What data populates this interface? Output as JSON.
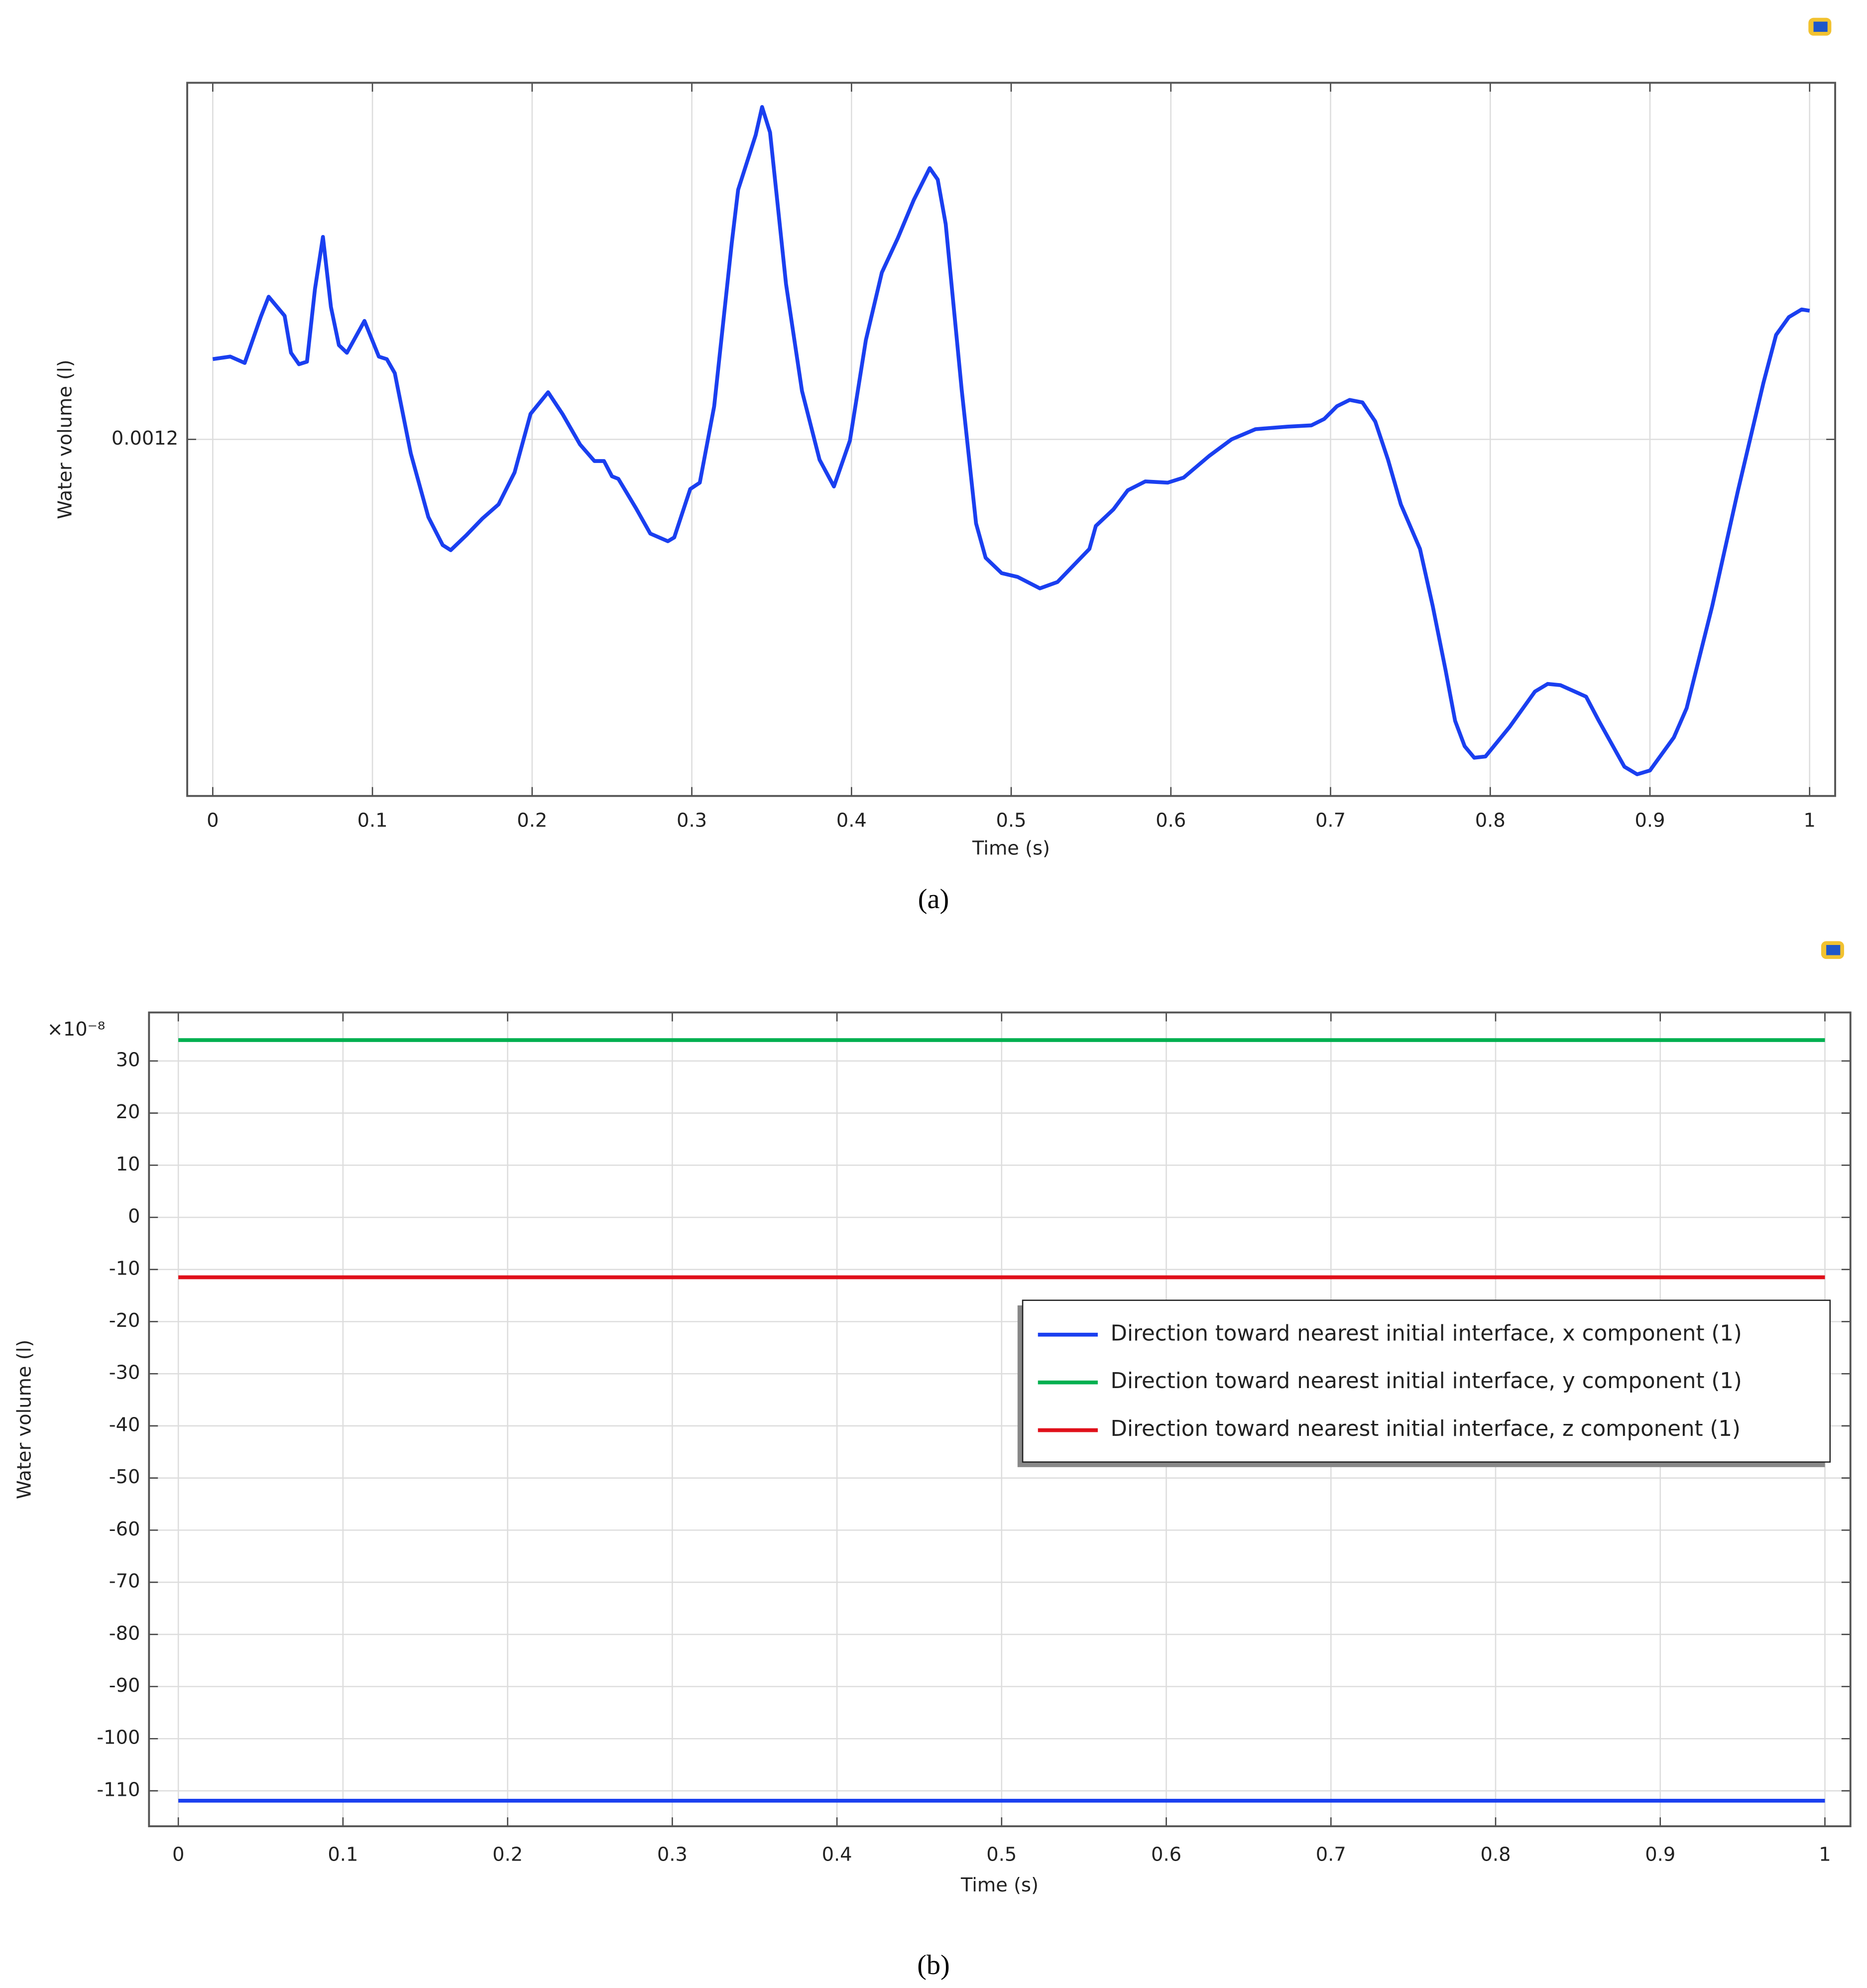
{
  "chart_data": [
    {
      "type": "line",
      "caption": "(a)",
      "x_label": "Time (s)",
      "y_label": "Water volume (l)",
      "color": "#1a3ff0",
      "grid": true,
      "x": [
        0,
        0.011,
        0.02,
        0.03,
        0.035,
        0.045,
        0.049,
        0.054,
        0.059,
        0.064,
        0.069,
        0.074,
        0.079,
        0.084,
        0.095,
        0.104,
        0.109,
        0.114,
        0.124,
        0.135,
        0.144,
        0.149,
        0.159,
        0.169,
        0.179,
        0.189,
        0.199,
        0.21,
        0.219,
        0.23,
        0.239,
        0.245,
        0.25,
        0.254,
        0.265,
        0.274,
        0.285,
        0.289,
        0.299,
        0.305,
        0.314,
        0.325,
        0.329,
        0.34,
        0.344,
        0.349,
        0.359,
        0.369,
        0.38,
        0.389,
        0.399,
        0.409,
        0.419,
        0.429,
        0.439,
        0.449,
        0.454,
        0.459,
        0.469,
        0.478,
        0.484,
        0.494,
        0.504,
        0.518,
        0.529,
        0.549,
        0.553,
        0.564,
        0.573,
        0.584,
        0.598,
        0.608,
        0.624,
        0.638,
        0.653,
        0.673,
        0.688,
        0.696,
        0.704,
        0.712,
        0.72,
        0.728,
        0.736,
        0.744,
        0.756,
        0.764,
        0.772,
        0.778,
        0.784,
        0.79,
        0.797,
        0.812,
        0.828,
        0.836,
        0.844,
        0.86,
        0.868,
        0.884,
        0.892,
        0.9,
        0.915,
        0.923,
        0.939,
        0.955,
        0.971,
        0.979,
        0.987,
        0.995,
        1
      ],
      "values": [
        0.0012063,
        0.0012065,
        0.001206,
        0.0012096,
        0.0012112,
        0.0012097,
        0.0012068,
        0.0012059,
        0.0012061,
        0.0012118,
        0.0012159,
        0.0012104,
        0.0012074,
        0.0012068,
        0.0012093,
        0.0012065,
        0.0012063,
        0.0012052,
        0.0011989,
        0.0011939,
        0.0011917,
        0.0011913,
        0.0011925,
        0.0011938,
        0.0011949,
        0.0011974,
        0.001202,
        0.0012037,
        0.001202,
        0.0011996,
        0.0011983,
        0.0011983,
        0.0011971,
        0.0011969,
        0.0011946,
        0.0011926,
        0.001192,
        0.0011923,
        0.0011961,
        0.0011966,
        0.0012026,
        0.0012154,
        0.0012196,
        0.0012239,
        0.0012261,
        0.0012241,
        0.0012122,
        0.0012038,
        0.0011984,
        0.0011963,
        0.0011999,
        0.0012078,
        0.0012131,
        0.0012158,
        0.0012188,
        0.0012213,
        0.0012204,
        0.0012169,
        0.0012039,
        0.0011934,
        0.0011907,
        0.0011895,
        0.0011892,
        0.0011883,
        0.0011888,
        0.0011914,
        0.0011932,
        0.0011945,
        0.001196,
        0.0011967,
        0.0011966,
        0.001197,
        0.0011987,
        0.0012,
        0.0012008,
        0.001201,
        0.0012011,
        0.0012016,
        0.0012026,
        0.0012031,
        0.0012029,
        0.0012014,
        0.0011984,
        0.0011949,
        0.0011914,
        0.0011869,
        0.0011819,
        0.0011779,
        0.0011759,
        0.001175,
        0.0011751,
        0.0011774,
        0.0011802,
        0.0011808,
        0.0011807,
        0.0011798,
        0.0011779,
        0.0011743,
        0.0011737,
        0.001174,
        0.0011766,
        0.0011789,
        0.0011869,
        0.0011959,
        0.0012044,
        0.0012082,
        0.0012096,
        0.0012102,
        0.0012101
      ],
      "xlim": [
        -0.016,
        1.016
      ],
      "xticks": [
        0,
        0.1,
        0.2,
        0.3,
        0.4,
        0.5,
        0.6,
        0.7,
        0.8,
        0.9,
        1
      ],
      "ylim": [
        0.001172,
        0.001228
      ],
      "yticks": [
        0.0012
      ]
    },
    {
      "type": "line",
      "caption": "(b)",
      "x_label": "Time (s)",
      "y_label": "Water volume (l)",
      "y_multiplier": "×10⁻⁸",
      "grid": true,
      "legend": "right",
      "x": [
        0,
        1
      ],
      "series": [
        {
          "name": "Direction toward nearest initial interface, x component (1)",
          "color": "#1a3ff0",
          "values": [
            -111.9,
            -111.9
          ]
        },
        {
          "name": "Direction toward nearest initial interface, y component (1)",
          "color": "#00b050",
          "values": [
            34,
            34
          ]
        },
        {
          "name": "Direction toward nearest initial interface, z component (1)",
          "color": "#e0101a",
          "values": [
            -11.5,
            -11.5
          ]
        }
      ],
      "xlim": [
        -0.0178,
        1.0155
      ],
      "xticks": [
        0,
        0.1,
        0.2,
        0.3,
        0.4,
        0.5,
        0.6,
        0.7,
        0.8,
        0.9,
        1
      ],
      "ylim": [
        -116.8,
        39.3
      ],
      "yticks": [
        30,
        20,
        10,
        0,
        -10,
        -20,
        -30,
        -40,
        -50,
        -60,
        -70,
        -80,
        -90,
        -100,
        -110
      ]
    }
  ]
}
